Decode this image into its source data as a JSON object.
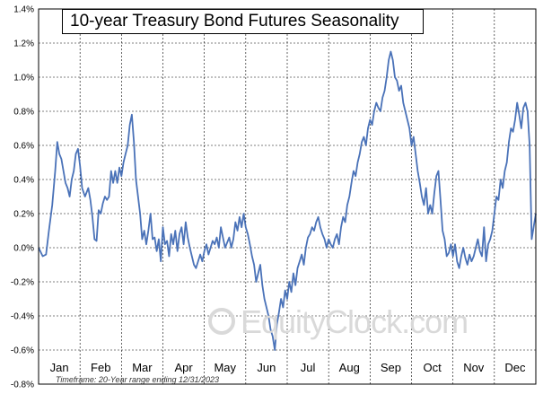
{
  "chart_data": {
    "type": "line",
    "title": "10-year Treasury Bond Futures Seasonality",
    "footnote": "Timeframe:  20-Year range  ending 12/31/2023",
    "watermark": "EquityClock.com",
    "ylim": [
      -0.8,
      1.4
    ],
    "yticks": [
      -0.8,
      -0.6,
      -0.4,
      -0.2,
      0.0,
      0.2,
      0.4,
      0.6,
      0.8,
      1.0,
      1.2,
      1.4
    ],
    "ytick_labels": [
      "-0.8%",
      "-0.6%",
      "-0.4%",
      "-0.2%",
      "0.0%",
      "0.2%",
      "0.4%",
      "0.6%",
      "0.8%",
      "1.0%",
      "1.2%",
      "1.4%"
    ],
    "months": [
      "Jan",
      "Feb",
      "Mar",
      "Apr",
      "May",
      "Jun",
      "Jul",
      "Aug",
      "Sep",
      "Oct",
      "Nov",
      "Dec"
    ],
    "grid": true,
    "line_color": "#4a72b8",
    "series": [
      {
        "x": [
          0.0,
          0.1,
          0.18,
          0.25,
          0.33,
          0.4,
          0.45,
          0.5,
          0.55,
          0.6,
          0.65,
          0.7,
          0.75,
          0.8,
          0.85,
          0.9,
          0.95,
          1.0,
          1.05,
          1.12,
          1.2,
          1.25,
          1.3,
          1.35,
          1.4,
          1.45,
          1.5,
          1.55,
          1.6,
          1.65,
          1.7,
          1.75,
          1.8,
          1.85,
          1.9,
          1.95,
          2.0,
          2.05,
          2.1,
          2.15,
          2.2,
          2.25,
          2.3,
          2.35,
          2.4,
          2.45,
          2.5,
          2.55,
          2.6,
          2.65,
          2.7,
          2.75,
          2.8,
          2.85,
          2.9,
          2.95,
          3.0,
          3.05,
          3.1,
          3.15,
          3.2,
          3.25,
          3.3,
          3.35,
          3.4,
          3.45,
          3.5,
          3.55,
          3.6,
          3.65,
          3.7,
          3.75,
          3.8,
          3.85,
          3.9,
          3.95,
          4.0,
          4.05,
          4.1,
          4.15,
          4.2,
          4.25,
          4.3,
          4.35,
          4.4,
          4.45,
          4.5,
          4.55,
          4.6,
          4.65,
          4.7,
          4.75,
          4.8,
          4.85,
          4.9,
          4.95,
          5.0,
          5.05,
          5.1,
          5.15,
          5.2,
          5.25,
          5.3,
          5.35,
          5.4,
          5.45,
          5.5,
          5.55,
          5.6,
          5.65,
          5.7,
          5.75,
          5.8,
          5.85,
          5.9,
          5.95,
          6.0,
          6.05,
          6.1,
          6.15,
          6.2,
          6.25,
          6.3,
          6.35,
          6.4,
          6.45,
          6.5,
          6.55,
          6.6,
          6.65,
          6.7,
          6.75,
          6.8,
          6.85,
          6.9,
          6.95,
          7.0,
          7.05,
          7.1,
          7.15,
          7.2,
          7.25,
          7.3,
          7.35,
          7.4,
          7.45,
          7.5,
          7.55,
          7.6,
          7.65,
          7.7,
          7.75,
          7.8,
          7.85,
          7.9,
          7.95,
          8.0,
          8.05,
          8.1,
          8.15,
          8.2,
          8.25,
          8.3,
          8.35,
          8.4,
          8.45,
          8.5,
          8.55,
          8.6,
          8.65,
          8.7,
          8.75,
          8.8,
          8.85,
          8.9,
          8.95,
          9.0,
          9.05,
          9.1,
          9.15,
          9.2,
          9.25,
          9.3,
          9.35,
          9.4,
          9.45,
          9.5,
          9.55,
          9.6,
          9.65,
          9.7,
          9.75,
          9.8,
          9.85,
          9.9,
          9.95,
          10.0,
          10.05,
          10.1,
          10.15,
          10.2,
          10.25,
          10.3,
          10.35,
          10.4,
          10.45,
          10.5,
          10.55,
          10.6,
          10.65,
          10.7,
          10.75,
          10.8,
          10.85,
          10.9,
          10.95,
          11.0,
          11.05,
          11.1,
          11.15,
          11.2,
          11.25,
          11.3,
          11.35,
          11.4,
          11.45,
          11.5,
          11.55,
          11.6,
          11.65,
          11.7,
          11.75,
          11.8,
          11.85,
          11.9,
          12.0
        ],
        "y": [
          0.0,
          -0.05,
          -0.04,
          0.1,
          0.25,
          0.45,
          0.62,
          0.55,
          0.52,
          0.45,
          0.38,
          0.35,
          0.3,
          0.4,
          0.45,
          0.55,
          0.58,
          0.48,
          0.35,
          0.3,
          0.35,
          0.28,
          0.18,
          0.05,
          0.04,
          0.22,
          0.2,
          0.26,
          0.3,
          0.28,
          0.3,
          0.45,
          0.38,
          0.45,
          0.38,
          0.47,
          0.42,
          0.5,
          0.55,
          0.6,
          0.72,
          0.78,
          0.62,
          0.4,
          0.3,
          0.2,
          0.05,
          0.1,
          0.02,
          0.1,
          0.2,
          0.05,
          0.06,
          -0.02,
          0.05,
          -0.08,
          0.12,
          0.02,
          0.04,
          -0.05,
          0.08,
          0.02,
          0.1,
          -0.02,
          0.08,
          0.12,
          0.02,
          0.15,
          0.06,
          0.0,
          -0.05,
          -0.1,
          -0.12,
          -0.08,
          -0.04,
          -0.08,
          -0.02,
          0.02,
          -0.04,
          0.0,
          0.04,
          0.02,
          0.06,
          0.0,
          0.12,
          0.06,
          0.0,
          0.03,
          0.06,
          0.0,
          0.05,
          0.15,
          0.1,
          0.18,
          0.12,
          0.2,
          0.12,
          0.08,
          0.02,
          -0.05,
          -0.1,
          -0.2,
          -0.15,
          -0.1,
          -0.22,
          -0.3,
          -0.35,
          -0.4,
          -0.48,
          -0.52,
          -0.6,
          -0.45,
          -0.38,
          -0.3,
          -0.35,
          -0.25,
          -0.3,
          -0.2,
          -0.26,
          -0.15,
          -0.22,
          -0.12,
          -0.08,
          -0.04,
          -0.1,
          0.0,
          0.06,
          0.08,
          0.12,
          0.1,
          0.15,
          0.18,
          0.12,
          0.08,
          0.05,
          0.0,
          0.05,
          0.02,
          0.0,
          0.05,
          0.08,
          0.02,
          0.12,
          0.18,
          0.15,
          0.25,
          0.3,
          0.38,
          0.45,
          0.42,
          0.5,
          0.55,
          0.62,
          0.65,
          0.6,
          0.7,
          0.75,
          0.72,
          0.8,
          0.85,
          0.82,
          0.8,
          0.88,
          0.92,
          1.0,
          1.1,
          1.15,
          1.1,
          1.0,
          0.98,
          0.92,
          0.95,
          0.85,
          0.8,
          0.75,
          0.7,
          0.6,
          0.65,
          0.55,
          0.45,
          0.38,
          0.3,
          0.25,
          0.35,
          0.2,
          0.25,
          0.2,
          0.32,
          0.42,
          0.45,
          0.28,
          0.1,
          0.05,
          -0.05,
          -0.03,
          0.02,
          -0.05,
          0.02,
          -0.08,
          -0.12,
          -0.05,
          0.0,
          -0.06,
          -0.1,
          -0.04,
          -0.08,
          -0.05,
          0.0,
          0.05,
          -0.02,
          -0.05,
          0.12,
          -0.08,
          0.02,
          0.05,
          0.1,
          0.2,
          0.3,
          0.28,
          0.4,
          0.35,
          0.45,
          0.5,
          0.62,
          0.7,
          0.68,
          0.75,
          0.85,
          0.78,
          0.7,
          0.82,
          0.85,
          0.8,
          0.6,
          0.05,
          0.2
        ]
      }
    ]
  }
}
